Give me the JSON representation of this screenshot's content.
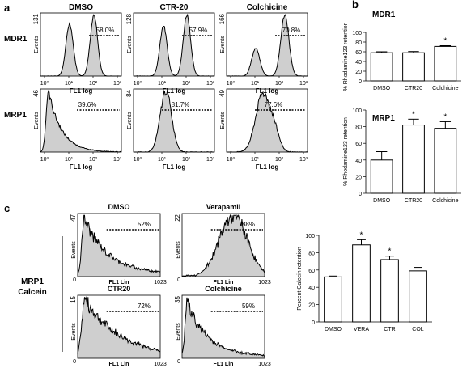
{
  "chart_data": [
    {
      "panel": "a",
      "type": "area",
      "row_labels": [
        "MDR1",
        "MRP1"
      ],
      "col_labels": [
        "DMSO",
        "CTR-20",
        "Colchicine"
      ],
      "xlabel": "FL1 log",
      "ylabel": "Events",
      "xticks": [
        "10⁰",
        "10¹",
        "10²",
        "10³"
      ],
      "plots": [
        {
          "row": "MDR1",
          "col": "DMSO",
          "ymax": "131",
          "percent": "58.0%"
        },
        {
          "row": "MDR1",
          "col": "CTR-20",
          "ymax": "128",
          "percent": "57.9%"
        },
        {
          "row": "MDR1",
          "col": "Colchicine",
          "ymax": "166",
          "percent": "70.8%"
        },
        {
          "row": "MRP1",
          "col": "DMSO",
          "ymax": "46",
          "percent": "39.6%"
        },
        {
          "row": "MRP1",
          "col": "CTR-20",
          "ymax": "84",
          "percent": "81.7%"
        },
        {
          "row": "MRP1",
          "col": "Colchicine",
          "ymax": "49",
          "percent": "77.6%"
        }
      ]
    },
    {
      "panel": "b",
      "type": "bar",
      "title": "MDR1",
      "ylabel": "% Rhodamine123 retention",
      "categories": [
        "DMSO",
        "CTR20",
        "Colchicine"
      ],
      "values": [
        58,
        58,
        71
      ],
      "errors": [
        2,
        2.5,
        1.5
      ],
      "significant": [
        false,
        false,
        true
      ],
      "ylim": [
        0,
        100
      ],
      "yticks": [
        "0",
        "20",
        "40",
        "60",
        "80",
        "100"
      ]
    },
    {
      "panel": "b",
      "type": "bar",
      "title": "MRP1",
      "ylabel": "% Rhodamine123 retention",
      "categories": [
        "DMSO",
        "CTR20",
        "Colchicine"
      ],
      "values": [
        40,
        82,
        78
      ],
      "errors": [
        10,
        7,
        8
      ],
      "significant": [
        false,
        true,
        true
      ],
      "ylim": [
        0,
        100
      ],
      "yticks": [
        "0",
        "20",
        "40",
        "60",
        "80",
        "100"
      ]
    },
    {
      "panel": "c",
      "type": "area",
      "side_label": [
        "MRP1",
        "Calcein"
      ],
      "xlabel": "FL1 Lin",
      "ylabel": "Events",
      "xticks": [
        "0",
        "1023"
      ],
      "plots": [
        {
          "title": "DMSO",
          "ymax": "47",
          "percent": "52%"
        },
        {
          "title": "Verapamil",
          "ymax": "22",
          "percent": "88%"
        },
        {
          "title": "CTR20",
          "ymax": "15",
          "percent": "72%"
        },
        {
          "title": "Colchicine",
          "ymax": "35",
          "percent": "59%"
        }
      ]
    },
    {
      "panel": "c",
      "type": "bar",
      "ylabel": "Percent Calcein retention",
      "categories": [
        "DMSO",
        "VERA",
        "CTR",
        "COL"
      ],
      "values": [
        52,
        89,
        72,
        59
      ],
      "errors": [
        1,
        6,
        4,
        4
      ],
      "significant": [
        false,
        true,
        true,
        false
      ],
      "ylim": [
        0,
        100
      ],
      "yticks": [
        "0",
        "20",
        "40",
        "60",
        "80",
        "100"
      ]
    }
  ],
  "figure": {
    "panel_letters": [
      "a",
      "b",
      "c"
    ],
    "significance_mark": "*",
    "colors": {
      "fill": "#cfcfcf",
      "line": "#000000",
      "bar": "#ffffff"
    }
  }
}
